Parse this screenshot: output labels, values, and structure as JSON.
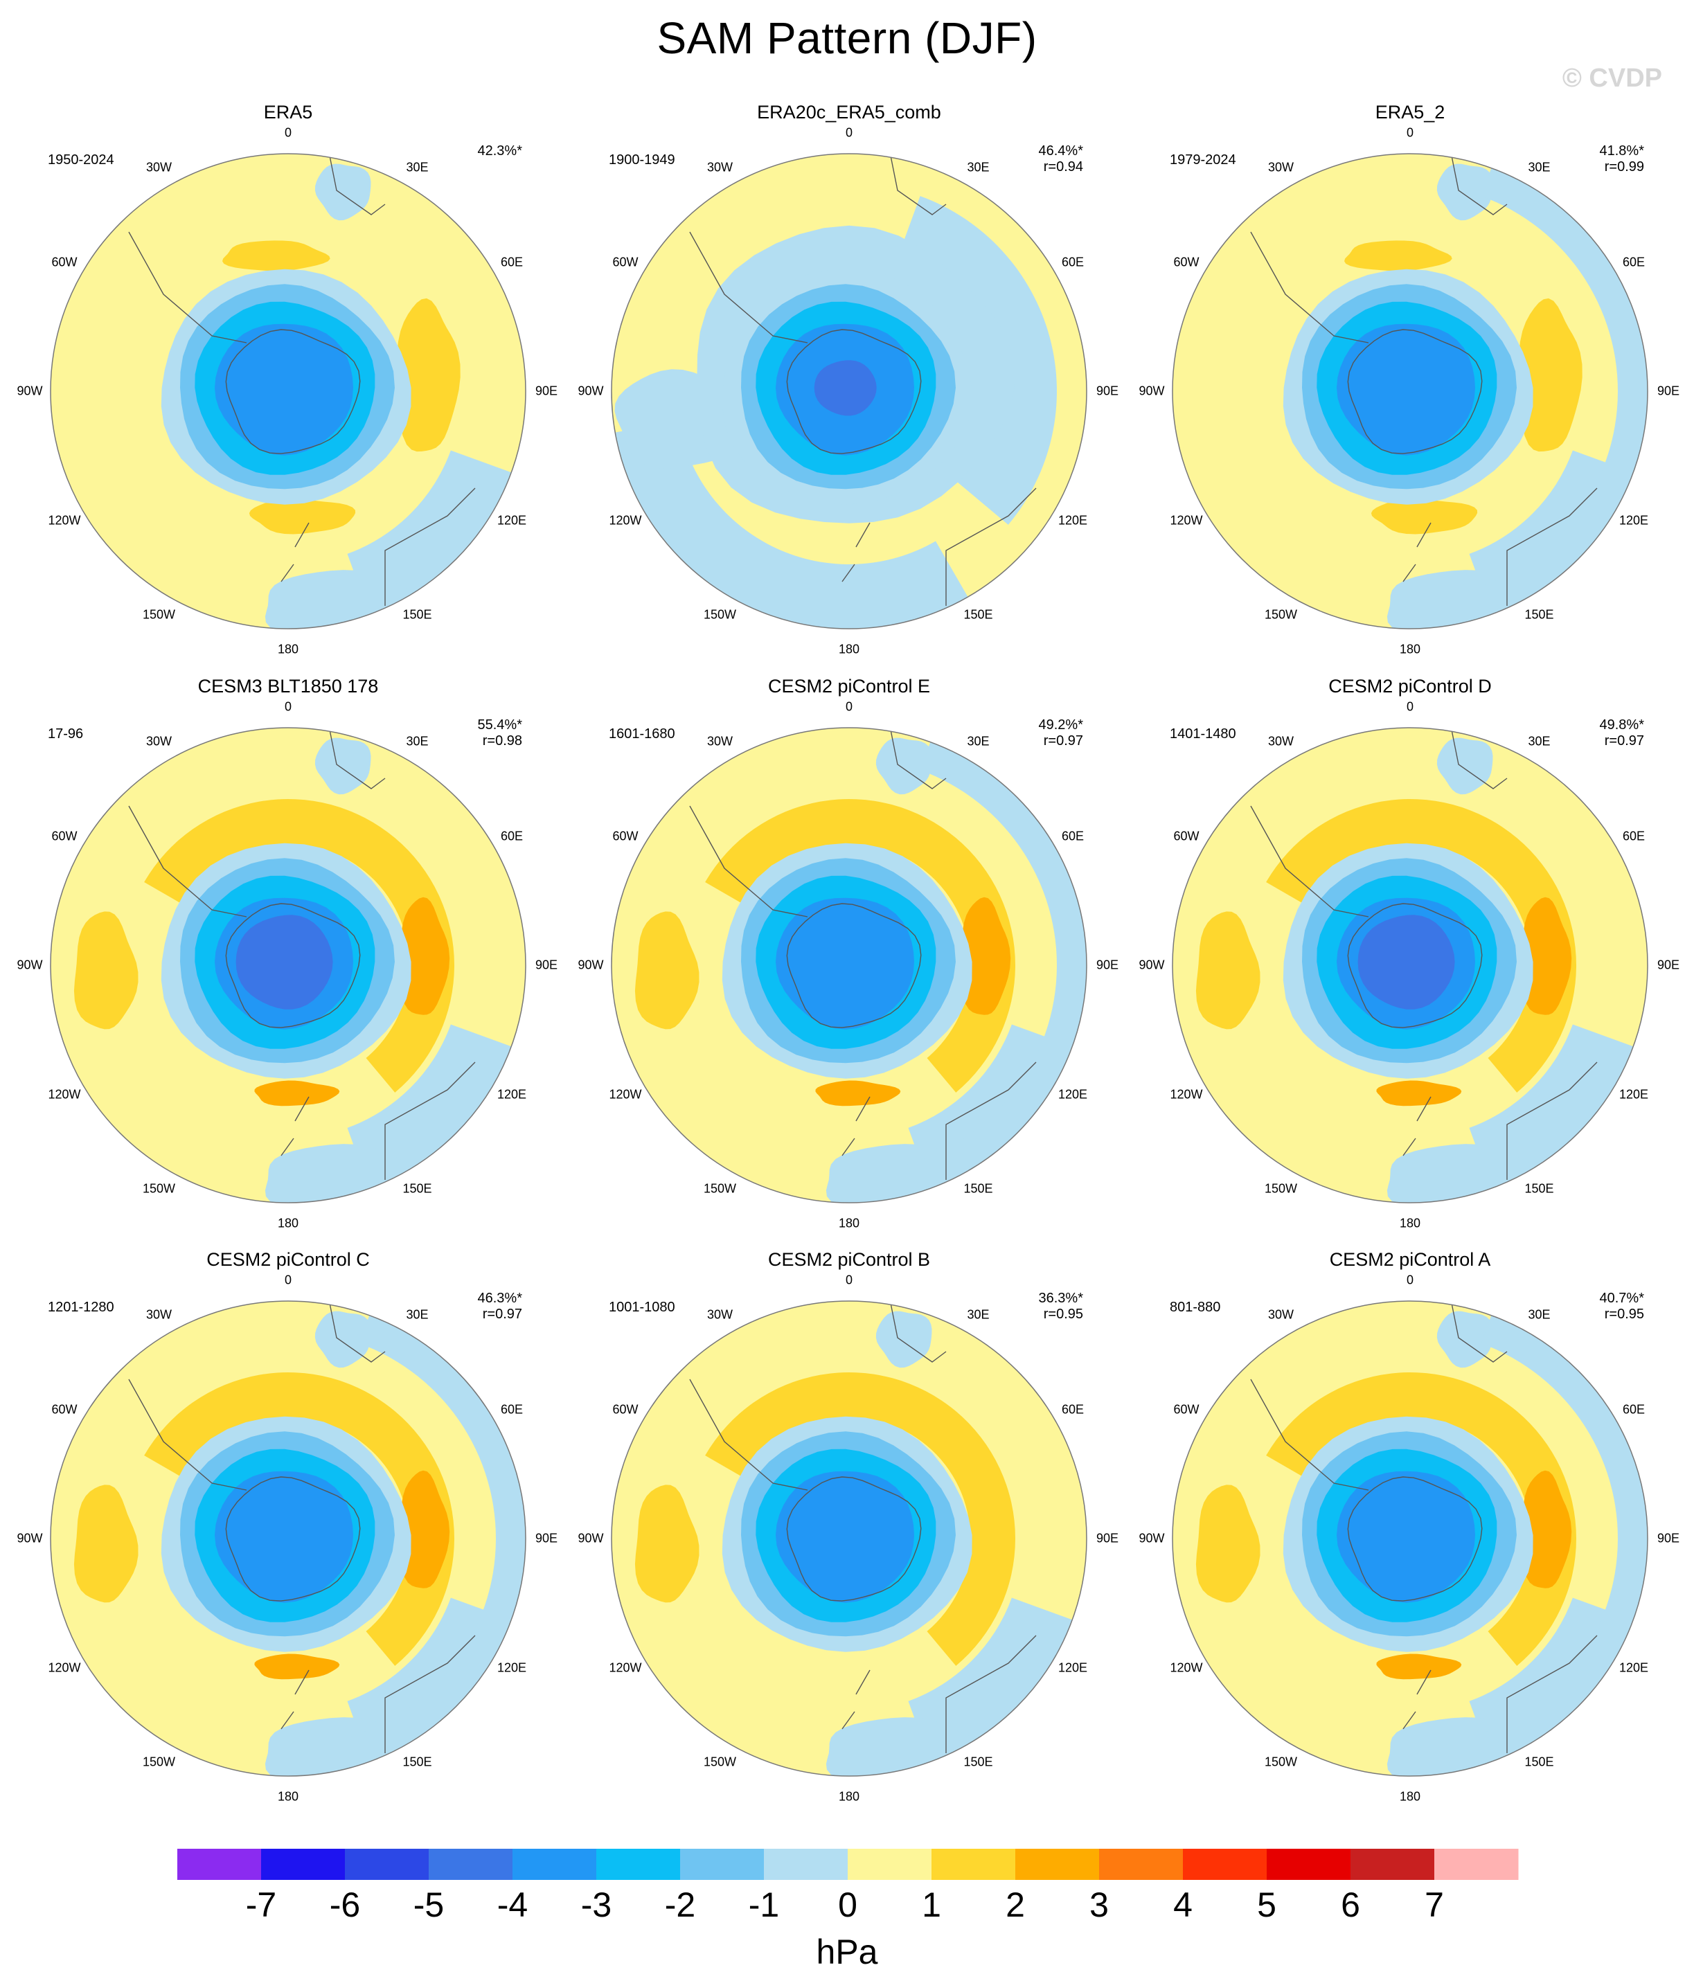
{
  "figure": {
    "title": "SAM Pattern (DJF)",
    "copyright": "© CVDP",
    "units": "hPa"
  },
  "colorbar": {
    "colors": [
      "#8b2bf0",
      "#1e14f0",
      "#2c48e6",
      "#3b76e6",
      "#2297f5",
      "#0bbef5",
      "#6fc4f2",
      "#b3def2",
      "#fdf699",
      "#fed72e",
      "#feac00",
      "#fe7a0f",
      "#fe3205",
      "#e60000",
      "#c82020",
      "#ffb2b2"
    ],
    "labels": [
      "-7",
      "-6",
      "-5",
      "-4",
      "-3",
      "-2",
      "-1",
      "0",
      "1",
      "2",
      "3",
      "4",
      "5",
      "6",
      "7"
    ]
  },
  "longitude_labels": [
    "0",
    "30E",
    "60E",
    "90E",
    "120E",
    "150E",
    "180",
    "150W",
    "120W",
    "90W",
    "60W",
    "30W"
  ],
  "panels": [
    {
      "title": "ERA5",
      "years": "1950-2024",
      "pct": "42.3%*",
      "r": "",
      "style": "obs"
    },
    {
      "title": "ERA20c_ERA5_comb",
      "years": "1900-1949",
      "pct": "46.4%*",
      "r": "r=0.94",
      "style": "era20"
    },
    {
      "title": "ERA5_2",
      "years": "1979-2024",
      "pct": "41.8%*",
      "r": "r=0.99",
      "style": "obs2"
    },
    {
      "title": "CESM3 BLT1850 178",
      "years": "17-96",
      "pct": "55.4%*",
      "r": "r=0.98",
      "style": "strong"
    },
    {
      "title": "CESM2 piControl E",
      "years": "1601-1680",
      "pct": "49.2%*",
      "r": "r=0.97",
      "style": "ring"
    },
    {
      "title": "CESM2 piControl D",
      "years": "1401-1480",
      "pct": "49.8%*",
      "r": "r=0.97",
      "style": "strong"
    },
    {
      "title": "CESM2 piControl C",
      "years": "1201-1280",
      "pct": "46.3%*",
      "r": "r=0.97",
      "style": "ring"
    },
    {
      "title": "CESM2 piControl B",
      "years": "1001-1080",
      "pct": "36.3%*",
      "r": "r=0.95",
      "style": "weak"
    },
    {
      "title": "CESM2 piControl A",
      "years": "801-880",
      "pct": "40.7%*",
      "r": "r=0.95",
      "style": "ring"
    }
  ]
}
